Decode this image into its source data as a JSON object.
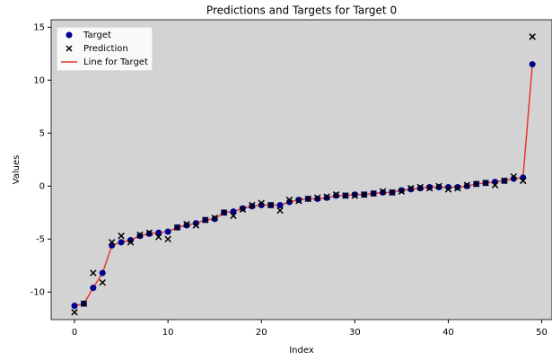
{
  "chart_data": {
    "type": "scatter",
    "title": "Predictions and Targets for Target 0",
    "xlabel": "Index",
    "ylabel": "Values",
    "x": [
      0,
      1,
      2,
      3,
      4,
      5,
      6,
      7,
      8,
      9,
      10,
      11,
      12,
      13,
      14,
      15,
      16,
      17,
      18,
      19,
      20,
      21,
      22,
      23,
      24,
      25,
      26,
      27,
      28,
      29,
      30,
      31,
      32,
      33,
      34,
      35,
      36,
      37,
      38,
      39,
      40,
      41,
      42,
      43,
      44,
      45,
      46,
      47,
      48,
      49
    ],
    "series": [
      {
        "name": "Target",
        "kind": "dot",
        "color": "#00008b",
        "values": [
          -11.3,
          -11.1,
          -9.6,
          -8.2,
          -5.6,
          -5.3,
          -5.1,
          -4.7,
          -4.5,
          -4.4,
          -4.3,
          -3.9,
          -3.7,
          -3.5,
          -3.2,
          -3.1,
          -2.5,
          -2.4,
          -2.1,
          -1.9,
          -1.8,
          -1.8,
          -1.8,
          -1.5,
          -1.3,
          -1.2,
          -1.2,
          -1.1,
          -0.9,
          -0.9,
          -0.8,
          -0.8,
          -0.7,
          -0.6,
          -0.6,
          -0.4,
          -0.3,
          -0.2,
          -0.1,
          -0.1,
          -0.1,
          -0.1,
          0.0,
          0.2,
          0.3,
          0.4,
          0.5,
          0.7,
          0.8,
          11.5
        ]
      },
      {
        "name": "Prediction",
        "kind": "cross",
        "color": "#000000",
        "values": [
          -11.9,
          -11.1,
          -8.2,
          -9.1,
          -5.3,
          -4.7,
          -5.3,
          -4.6,
          -4.4,
          -4.8,
          -5.0,
          -3.9,
          -3.6,
          -3.7,
          -3.2,
          -3.0,
          -2.5,
          -2.8,
          -2.2,
          -1.8,
          -1.6,
          -1.8,
          -2.3,
          -1.3,
          -1.4,
          -1.2,
          -1.1,
          -1.0,
          -0.8,
          -0.9,
          -0.9,
          -0.8,
          -0.7,
          -0.5,
          -0.6,
          -0.5,
          -0.2,
          -0.1,
          -0.2,
          0.0,
          -0.3,
          -0.2,
          0.1,
          0.2,
          0.3,
          0.1,
          0.5,
          0.9,
          0.5,
          14.1
        ]
      },
      {
        "name": "Line for Target",
        "kind": "line",
        "color": "#e8372c",
        "values": [
          -11.3,
          -11.1,
          -9.6,
          -8.2,
          -5.6,
          -5.3,
          -5.1,
          -4.7,
          -4.5,
          -4.4,
          -4.3,
          -3.9,
          -3.7,
          -3.5,
          -3.2,
          -3.1,
          -2.5,
          -2.4,
          -2.1,
          -1.9,
          -1.8,
          -1.8,
          -1.8,
          -1.5,
          -1.3,
          -1.2,
          -1.2,
          -1.1,
          -0.9,
          -0.9,
          -0.8,
          -0.8,
          -0.7,
          -0.6,
          -0.6,
          -0.4,
          -0.3,
          -0.2,
          -0.1,
          -0.1,
          -0.1,
          -0.1,
          0.0,
          0.2,
          0.3,
          0.4,
          0.5,
          0.7,
          0.8,
          11.5
        ]
      }
    ],
    "xlim": [
      -2.5,
      51.1
    ],
    "xticks": [
      0,
      10,
      20,
      30,
      40,
      50
    ],
    "ylim": [
      -12.6,
      15.7
    ],
    "yticks": [
      -10,
      -5,
      0,
      5,
      10,
      15
    ],
    "legend": "upper left",
    "background": "#d3d3d3"
  }
}
